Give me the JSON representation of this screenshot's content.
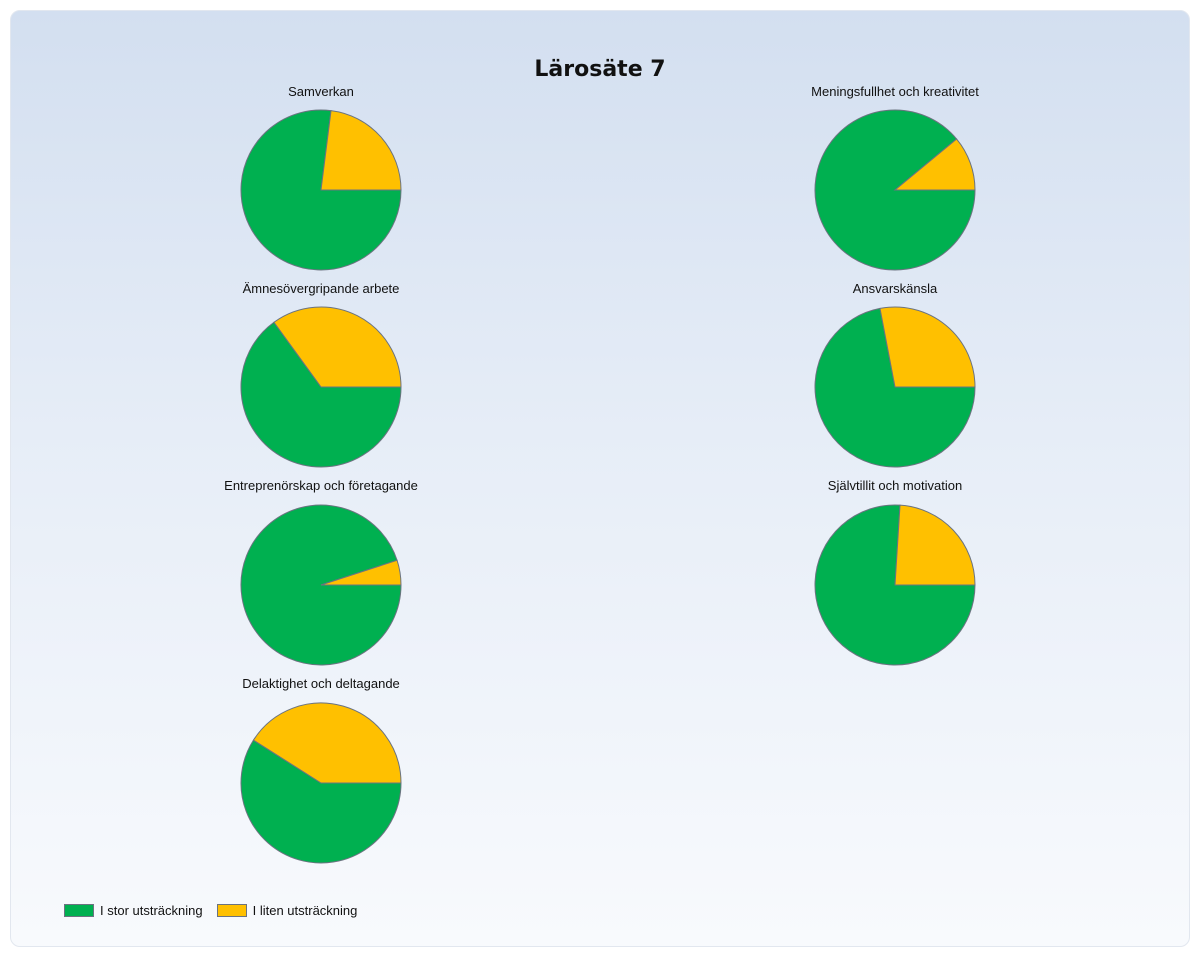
{
  "chart_data": {
    "type": "pie",
    "title": "Lärosäte 7",
    "legend": {
      "placement": "bottom-left",
      "entries": [
        {
          "label": "I stor utsträckning",
          "color": "#00b050"
        },
        {
          "label": "I liten utsträckning",
          "color": "#ffc000"
        }
      ]
    },
    "pies": [
      {
        "title": "Samverkan",
        "slices": [
          {
            "label": "I stor utsträckning",
            "value": 77
          },
          {
            "label": "I liten utsträckning",
            "value": 23
          }
        ]
      },
      {
        "title": "Meningsfullhet och kreativitet",
        "slices": [
          {
            "label": "I stor utsträckning",
            "value": 89
          },
          {
            "label": "I liten utsträckning",
            "value": 11
          }
        ]
      },
      {
        "title": "Ämnesövergripande arbete",
        "slices": [
          {
            "label": "I stor utsträckning",
            "value": 65
          },
          {
            "label": "I liten utsträckning",
            "value": 35
          }
        ]
      },
      {
        "title": "Ansvarskänsla",
        "slices": [
          {
            "label": "I stor utsträckning",
            "value": 72
          },
          {
            "label": "I liten utsträckning",
            "value": 28
          }
        ]
      },
      {
        "title": "Entreprenörskap och företagande",
        "slices": [
          {
            "label": "I stor utsträckning",
            "value": 95
          },
          {
            "label": "I liten utsträckning",
            "value": 5
          }
        ]
      },
      {
        "title": "Självtillit och motivation",
        "slices": [
          {
            "label": "I stor utsträckning",
            "value": 76
          },
          {
            "label": "I liten utsträckning",
            "value": 24
          }
        ]
      },
      {
        "title": "Delaktighet och deltagande",
        "slices": [
          {
            "label": "I stor utsträckning",
            "value": 59
          },
          {
            "label": "I liten utsträckning",
            "value": 41
          }
        ]
      }
    ]
  }
}
